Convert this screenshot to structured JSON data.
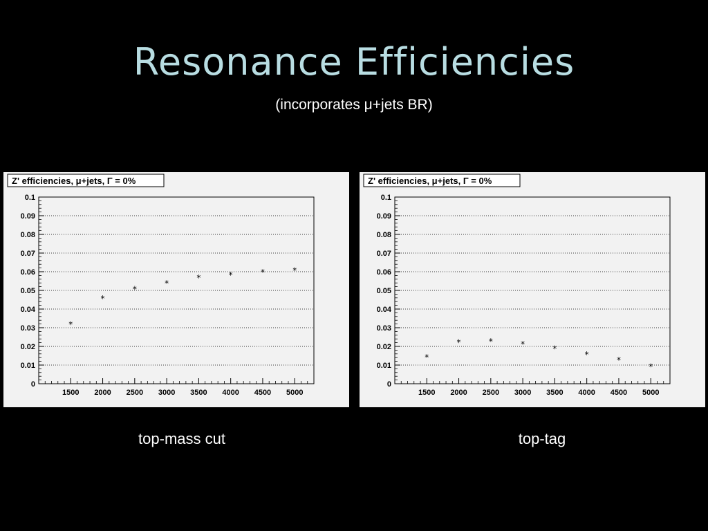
{
  "slide": {
    "title": "Resonance Efficiencies",
    "subtitle": "(incorporates μ+jets BR)"
  },
  "captions": [
    "top-mass cut",
    "top-tag"
  ],
  "colors": {
    "title": "#b8dde2",
    "background": "#000000",
    "panel_bg": "#f2f2f2"
  },
  "chart_data": [
    {
      "type": "scatter",
      "title": "Z' efficiencies, μ+jets, Γ = 0%",
      "x": [
        1500,
        2000,
        2500,
        3000,
        3500,
        4000,
        4500,
        5000
      ],
      "y": [
        0.032,
        0.046,
        0.051,
        0.054,
        0.057,
        0.0585,
        0.06,
        0.061
      ],
      "xlim": [
        1000,
        5300
      ],
      "ylim": [
        0,
        0.1
      ],
      "xticks": [
        "1500",
        "2000",
        "2500",
        "3000",
        "3500",
        "4000",
        "4500",
        "5000"
      ],
      "yticks": [
        "0",
        "0.01",
        "0.02",
        "0.03",
        "0.04",
        "0.05",
        "0.06",
        "0.07",
        "0.08",
        "0.09",
        "0.1"
      ],
      "grid": true,
      "marker": "*"
    },
    {
      "type": "scatter",
      "title": "Z' efficiencies, μ+jets, Γ = 0%",
      "x": [
        1500,
        2000,
        2500,
        3000,
        3500,
        4000,
        4500,
        5000
      ],
      "y": [
        0.0145,
        0.0225,
        0.023,
        0.0215,
        0.019,
        0.016,
        0.013,
        0.0095
      ],
      "xlim": [
        1000,
        5300
      ],
      "ylim": [
        0,
        0.1
      ],
      "xticks": [
        "1500",
        "2000",
        "2500",
        "3000",
        "3500",
        "4000",
        "4500",
        "5000"
      ],
      "yticks": [
        "0",
        "0.01",
        "0.02",
        "0.03",
        "0.04",
        "0.05",
        "0.06",
        "0.07",
        "0.08",
        "0.09",
        "0.1"
      ],
      "grid": true,
      "marker": "*"
    }
  ]
}
